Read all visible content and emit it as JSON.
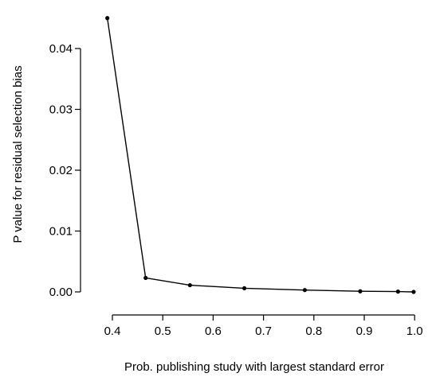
{
  "chart_data": {
    "type": "line",
    "xlabel": "Prob. publishing  study with largest standard error",
    "ylabel": "P value for residual selection bias",
    "xlim": [
      0.38,
      1.0
    ],
    "ylim": [
      0.0,
      0.046
    ],
    "x_ticks": [
      0.4,
      0.5,
      0.6,
      0.7,
      0.8,
      0.9,
      1.0
    ],
    "x_tick_labels": [
      "0.4",
      "0.5",
      "0.6",
      "0.7",
      "0.8",
      "0.9",
      "1.0"
    ],
    "y_ticks": [
      0.0,
      0.01,
      0.02,
      0.03,
      0.04
    ],
    "y_tick_labels": [
      "0.00",
      "0.01",
      "0.02",
      "0.03",
      "0.04"
    ],
    "grid": false,
    "legend": "none",
    "series": [
      {
        "x": [
          0.39,
          0.466,
          0.554,
          0.662,
          0.782,
          0.892,
          0.967,
          0.998
        ],
        "y": [
          0.045,
          0.0023,
          0.0011,
          0.0006,
          0.0003,
          0.0001,
          5e-05,
          0.0
        ]
      }
    ]
  }
}
